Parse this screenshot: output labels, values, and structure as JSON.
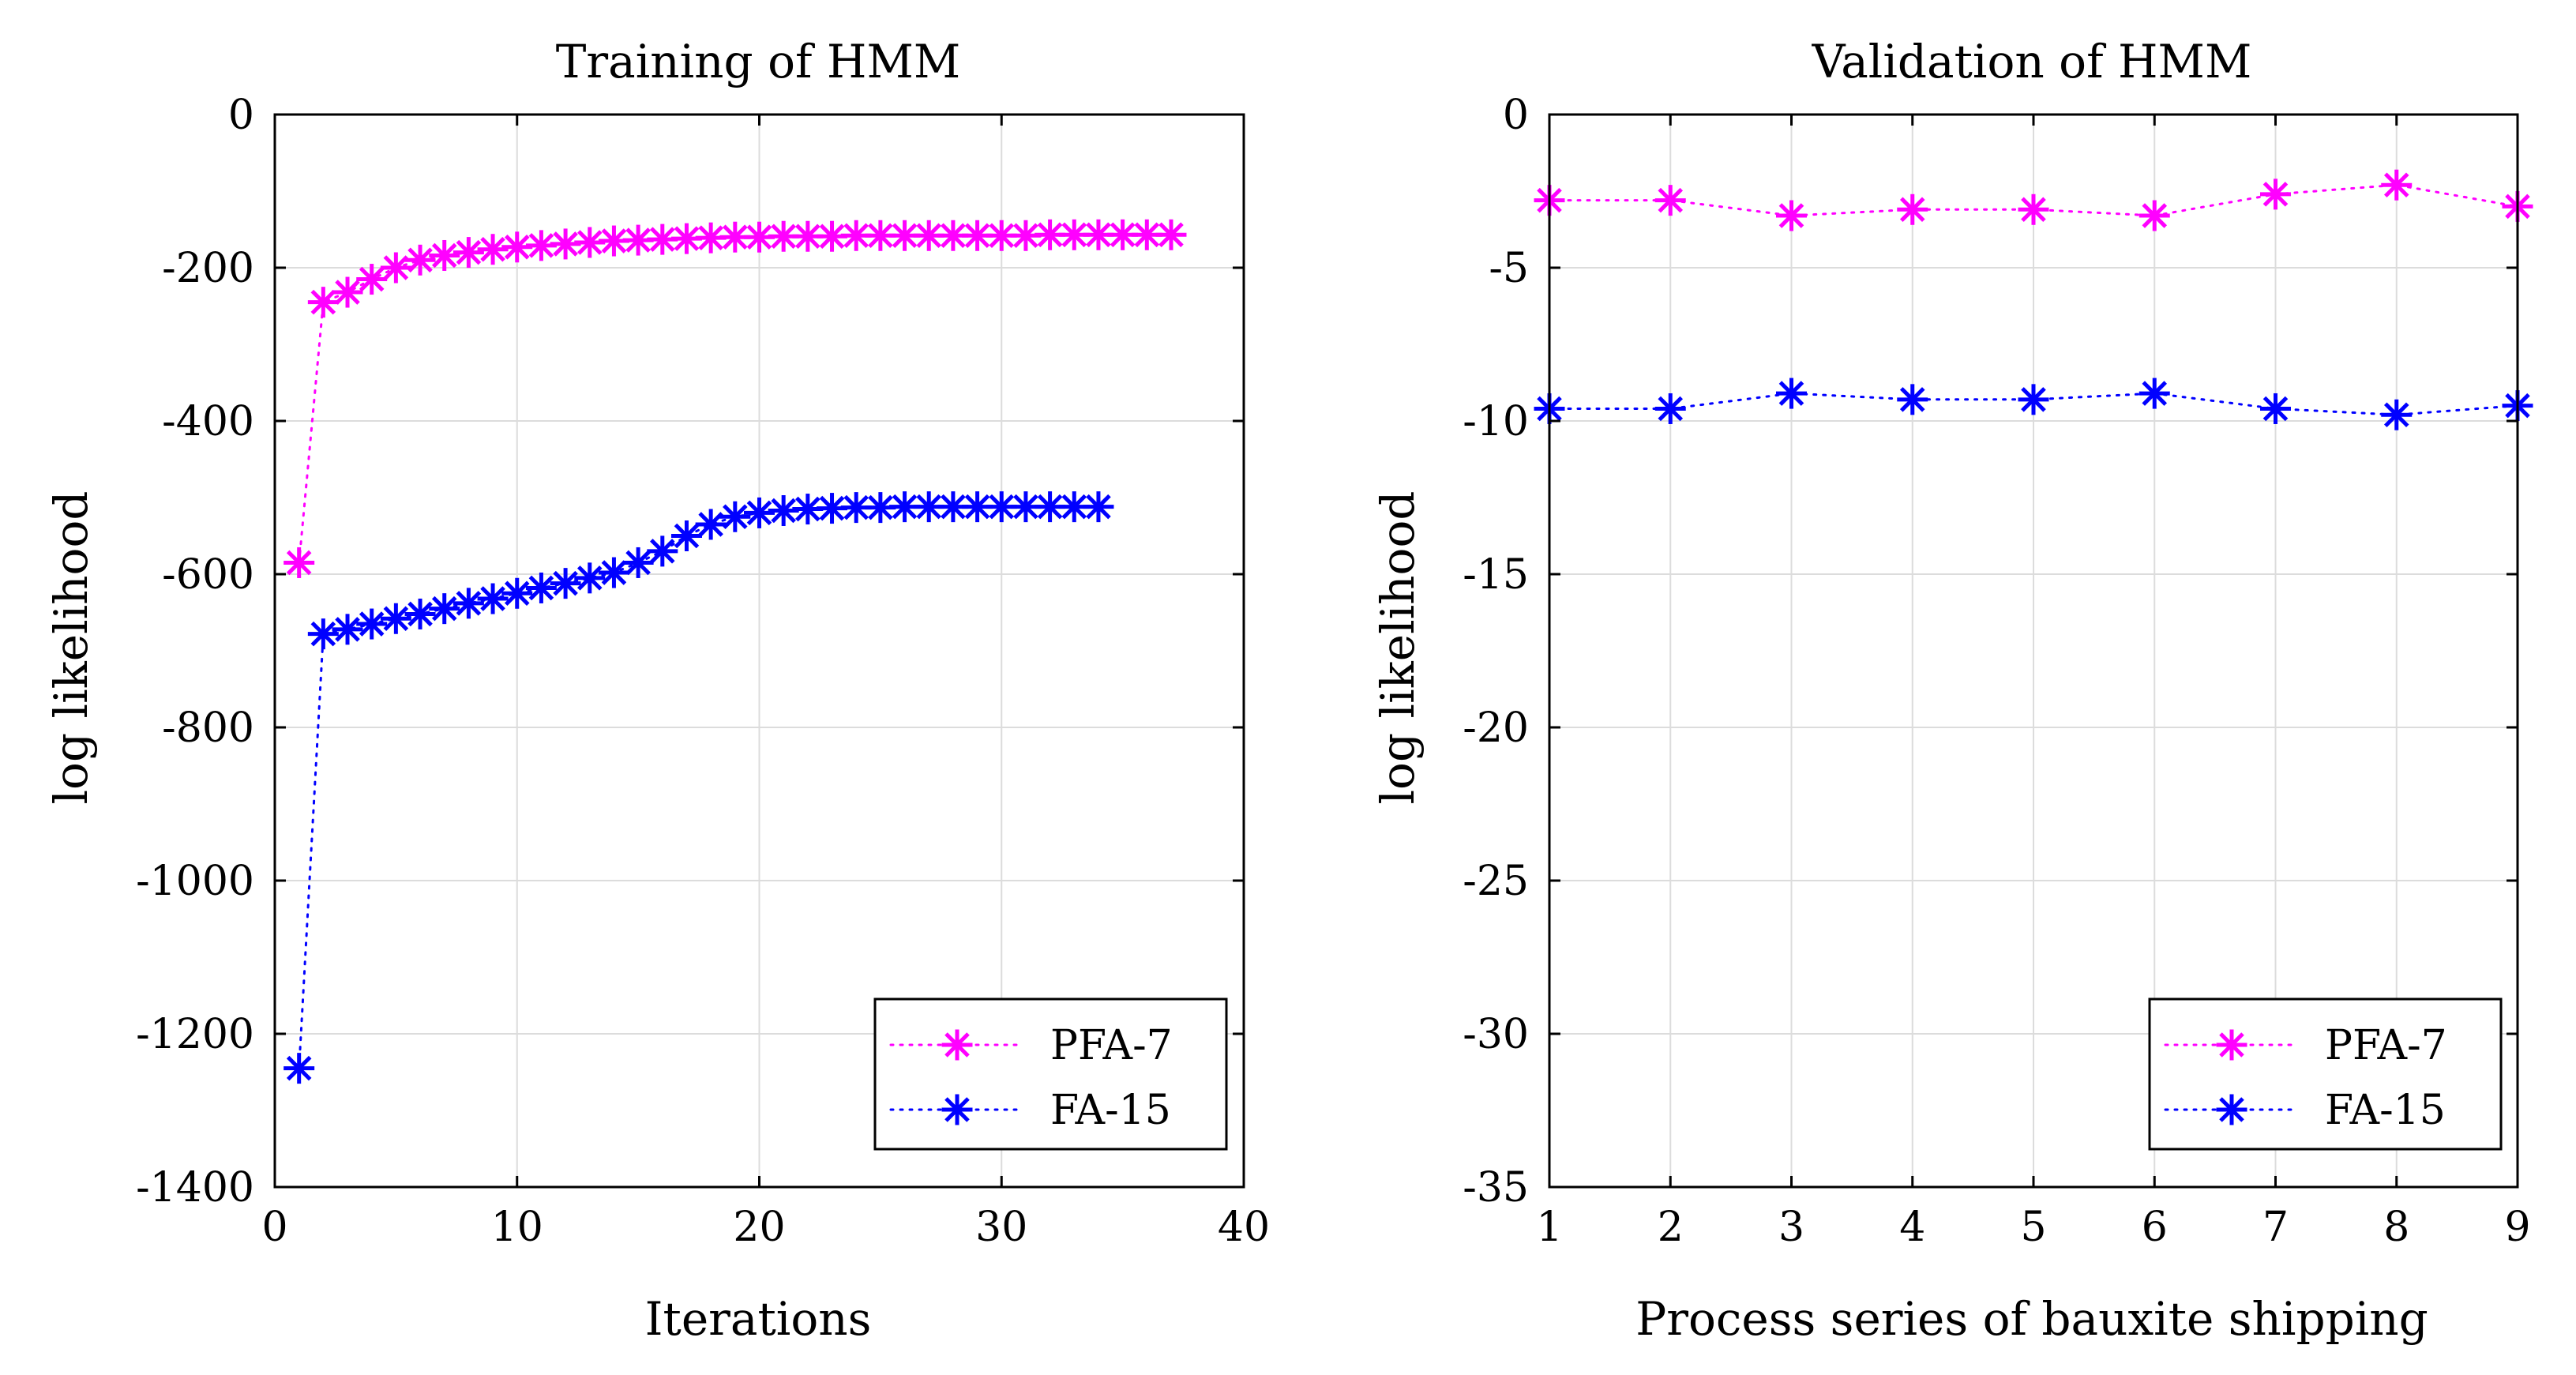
{
  "chart_data": [
    {
      "type": "line",
      "title": "Training of HMM",
      "xlabel": "Iterations",
      "ylabel": "log likelihood",
      "xlim": [
        0,
        40
      ],
      "ylim": [
        -1400,
        0
      ],
      "xticks": [
        0,
        10,
        20,
        30,
        40
      ],
      "yticks": [
        0,
        -200,
        -400,
        -600,
        -800,
        -1000,
        -1200,
        -1400
      ],
      "xtick_labels": [
        "0",
        "10",
        "20",
        "30",
        "40"
      ],
      "ytick_labels": [
        "0",
        "-200",
        "-400",
        "-600",
        "-800",
        "-1000",
        "-1200",
        "-1400"
      ],
      "grid": true,
      "legend_position": "bottom-right",
      "series": [
        {
          "name": "PFA-7",
          "color": "#ff00ff",
          "marker": "asterisk",
          "line_style": "dotted",
          "x": [
            1,
            2,
            3,
            4,
            5,
            6,
            7,
            8,
            9,
            10,
            11,
            12,
            13,
            14,
            15,
            16,
            17,
            18,
            19,
            20,
            21,
            22,
            23,
            24,
            25,
            26,
            27,
            28,
            29,
            30,
            31,
            32,
            33,
            34,
            35,
            36,
            37
          ],
          "y": [
            -585,
            -245,
            -232,
            -215,
            -200,
            -190,
            -184,
            -180,
            -176,
            -173,
            -171,
            -169,
            -167,
            -165,
            -164,
            -163,
            -162,
            -161,
            -160,
            -160,
            -159,
            -159,
            -159,
            -158,
            -158,
            -158,
            -158,
            -158,
            -158,
            -158,
            -158,
            -157,
            -157,
            -157,
            -157,
            -157,
            -157
          ]
        },
        {
          "name": "FA-15",
          "color": "#0000ff",
          "marker": "asterisk",
          "line_style": "dotted",
          "x": [
            1,
            2,
            3,
            4,
            5,
            6,
            7,
            8,
            9,
            10,
            11,
            12,
            13,
            14,
            15,
            16,
            17,
            18,
            19,
            20,
            21,
            22,
            23,
            24,
            25,
            26,
            27,
            28,
            29,
            30,
            31,
            32,
            33,
            34
          ],
          "y": [
            -1245,
            -678,
            -672,
            -665,
            -658,
            -652,
            -645,
            -638,
            -632,
            -625,
            -618,
            -612,
            -605,
            -598,
            -585,
            -570,
            -550,
            -535,
            -525,
            -520,
            -517,
            -515,
            -514,
            -513,
            -513,
            -512,
            -512,
            -512,
            -512,
            -512,
            -512,
            -512,
            -512,
            -512
          ]
        }
      ]
    },
    {
      "type": "line",
      "title": "Validation of HMM",
      "xlabel": "Process series of bauxite shipping",
      "ylabel": "log likelihood",
      "xlim": [
        1,
        9
      ],
      "ylim": [
        -35,
        0
      ],
      "xticks": [
        1,
        2,
        3,
        4,
        5,
        6,
        7,
        8,
        9
      ],
      "yticks": [
        0,
        -5,
        -10,
        -15,
        -20,
        -25,
        -30,
        -35
      ],
      "xtick_labels": [
        "1",
        "2",
        "3",
        "4",
        "5",
        "6",
        "7",
        "8",
        "9"
      ],
      "ytick_labels": [
        "0",
        "-5",
        "-10",
        "-15",
        "-20",
        "-25",
        "-30",
        "-35"
      ],
      "grid": true,
      "legend_position": "bottom-right",
      "series": [
        {
          "name": "PFA-7",
          "color": "#ff00ff",
          "marker": "asterisk",
          "line_style": "dotted",
          "x": [
            1,
            2,
            3,
            4,
            5,
            6,
            7,
            8,
            9
          ],
          "y": [
            -2.8,
            -2.8,
            -3.3,
            -3.1,
            -3.1,
            -3.3,
            -2.6,
            -2.3,
            -3.0
          ]
        },
        {
          "name": "FA-15",
          "color": "#0000ff",
          "marker": "asterisk",
          "line_style": "dotted",
          "x": [
            1,
            2,
            3,
            4,
            5,
            6,
            7,
            8,
            9
          ],
          "y": [
            -9.6,
            -9.6,
            -9.1,
            -9.3,
            -9.3,
            -9.1,
            -9.6,
            -9.8,
            -9.5
          ]
        }
      ]
    }
  ]
}
